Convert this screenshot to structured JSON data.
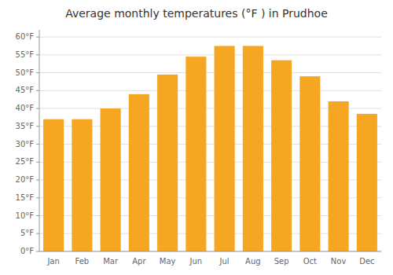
{
  "chart_data": {
    "type": "bar",
    "title": "Average monthly temperatures (°F ) in Prudhoe",
    "categories": [
      "Jan",
      "Feb",
      "Mar",
      "Apr",
      "May",
      "Jun",
      "Jul",
      "Aug",
      "Sep",
      "Oct",
      "Nov",
      "Dec"
    ],
    "values": [
      37,
      37,
      40,
      44,
      49.5,
      54.5,
      57.5,
      57.5,
      53.5,
      49,
      42,
      38.5
    ],
    "color": "#F5A623",
    "ylim": [
      0,
      62
    ],
    "yticks": [
      {
        "value": 0,
        "label": "0°F"
      },
      {
        "value": 5,
        "label": "5°F"
      },
      {
        "value": 10,
        "label": "10°F"
      },
      {
        "value": 15,
        "label": "15°F"
      },
      {
        "value": 20,
        "label": "20°F"
      },
      {
        "value": 25,
        "label": "25°F"
      },
      {
        "value": 30,
        "label": "30°F"
      },
      {
        "value": 35,
        "label": "35°F"
      },
      {
        "value": 40,
        "label": "40°F"
      },
      {
        "value": 45,
        "label": "45°F"
      },
      {
        "value": 50,
        "label": "50°F"
      },
      {
        "value": 55,
        "label": "55°F"
      },
      {
        "value": 60,
        "label": "60°F"
      }
    ],
    "grid": true
  }
}
